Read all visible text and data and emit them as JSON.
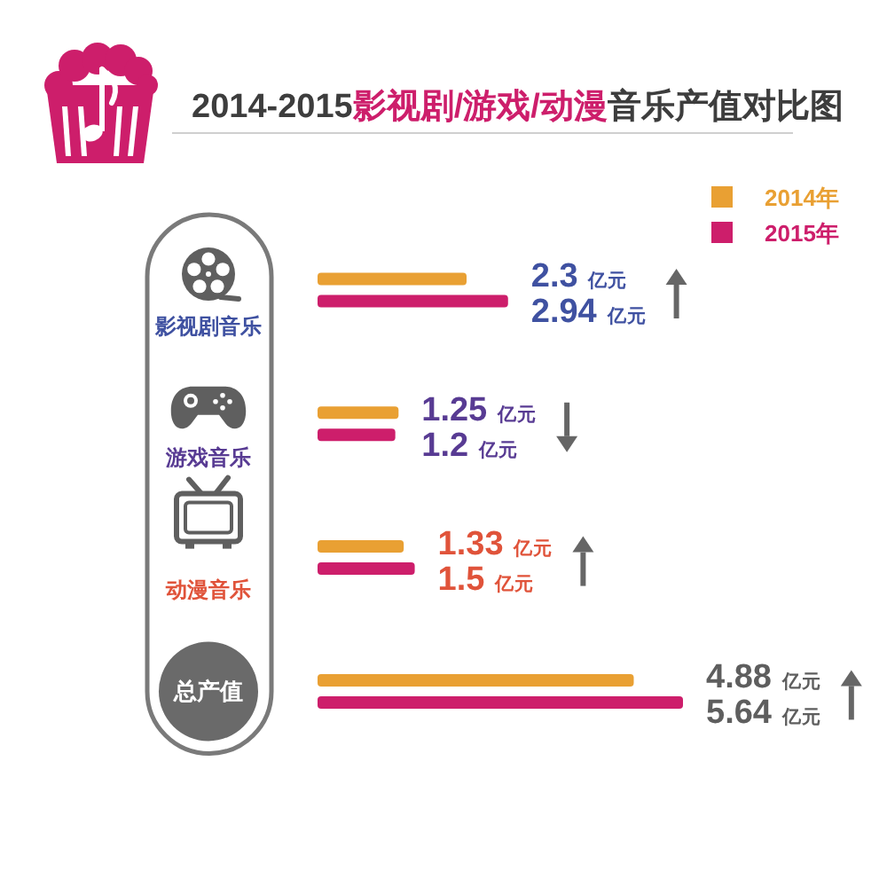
{
  "chart_data": {
    "type": "bar",
    "orientation": "horizontal",
    "title": "2014-2015**影视剧/游戏/动漫**音乐产值对比图",
    "categories": [
      "影视剧音乐",
      "游戏音乐",
      "动漫音乐",
      "总产值"
    ],
    "series": [
      {
        "name": "2014年",
        "color": "#e9a033",
        "values": [
          2.3,
          1.25,
          1.33,
          4.88
        ],
        "value_labels": [
          "2.3 亿元",
          "1.25 亿元",
          "1.33 亿元",
          "4.88 亿元"
        ]
      },
      {
        "name": "2015年",
        "color": "#cd1e6b",
        "values": [
          2.94,
          1.2,
          1.5,
          5.64
        ],
        "value_labels": [
          "2.94 亿元",
          "1.2 亿元",
          "1.5 亿元",
          "5.64 亿元"
        ]
      }
    ],
    "legend": "top right",
    "tick_labels": "y"
  }
}
